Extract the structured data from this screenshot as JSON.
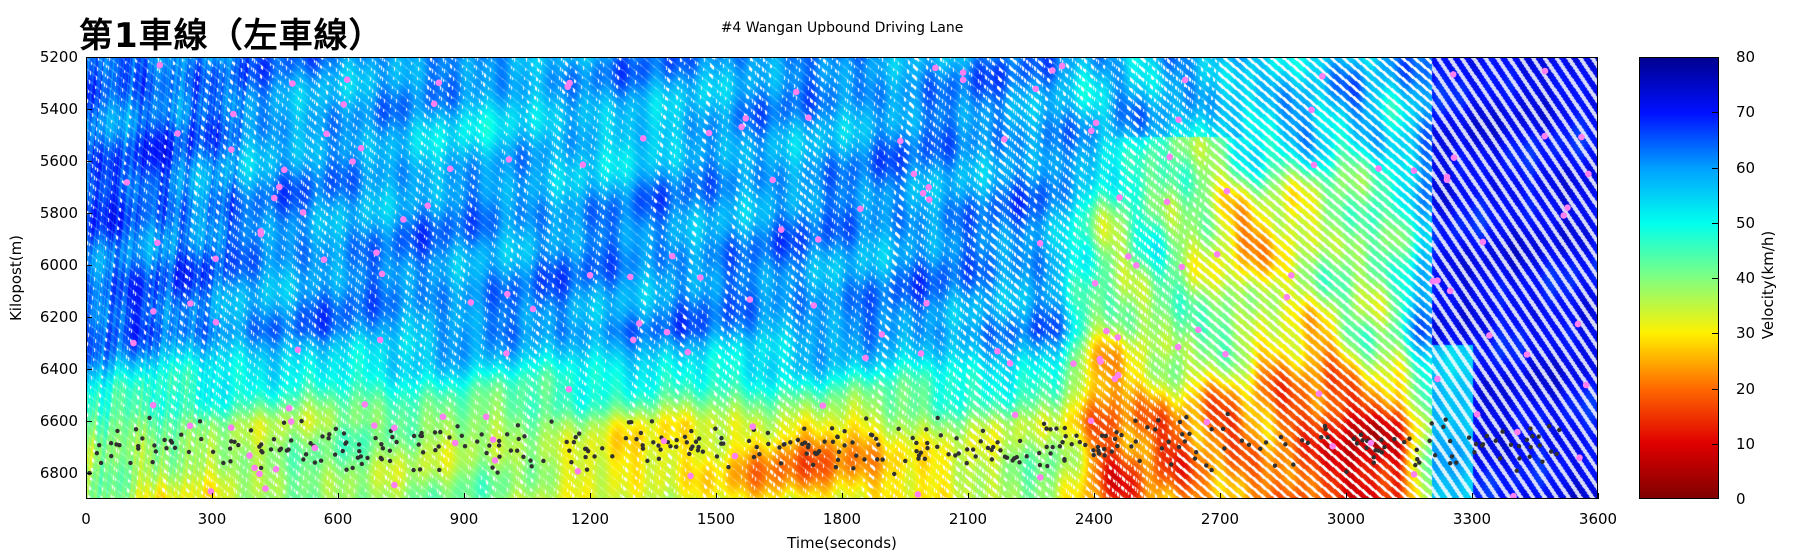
{
  "chart_data": {
    "type": "heatmap",
    "title": "第1車線（左車線）",
    "subtitle": "#4 Wangan Upbound Driving Lane",
    "xlabel": "Time(seconds)",
    "ylabel": "Kilopost(m)",
    "xlim": [
      0,
      3600
    ],
    "ylim": [
      5200,
      6900
    ],
    "y_inverted": true,
    "xticks": [
      "0",
      "300",
      "600",
      "900",
      "1200",
      "1500",
      "1800",
      "2100",
      "2400",
      "2700",
      "3000",
      "3300",
      "3600"
    ],
    "yticks": [
      "5200",
      "5400",
      "5600",
      "5800",
      "6000",
      "6200",
      "6400",
      "6600",
      "6800"
    ],
    "colorbar": {
      "label": "Velocity(km/h)",
      "range": [
        0,
        80
      ],
      "ticks": [
        "0",
        "10",
        "20",
        "30",
        "40",
        "50",
        "60",
        "70",
        "80"
      ],
      "colors": [
        "#800000",
        "#e00000",
        "#ff6a00",
        "#fff000",
        "#80ff80",
        "#00ffee",
        "#00a0ff",
        "#0010ff",
        "#000090"
      ]
    },
    "legend": "colorbar-right",
    "marker_colors": {
      "pink": "#ff80f0",
      "black": "#303030"
    }
  }
}
